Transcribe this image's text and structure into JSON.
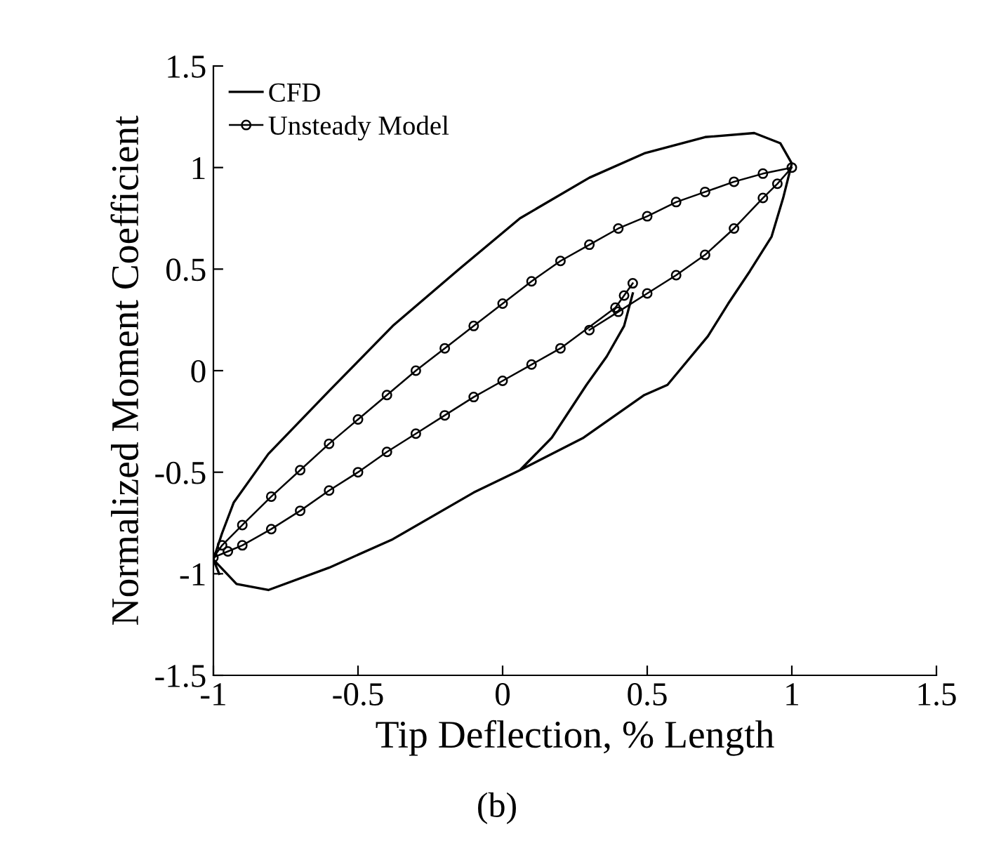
{
  "chart_data": {
    "type": "line",
    "xlabel": "Tip Deflection, % Length",
    "ylabel": "Normalized Moment Coefficient",
    "xlim": [
      -1,
      1.5
    ],
    "xticks": [
      -1,
      -0.5,
      0,
      0.5,
      1,
      1.5
    ],
    "ylim": [
      -1.5,
      1.5
    ],
    "yticks": [
      -1.5,
      -1,
      -0.5,
      0,
      0.5,
      1,
      1.5
    ],
    "grid": false,
    "legend": "top left",
    "annotations": [
      "(b)"
    ],
    "series": [
      {
        "name": "CFD",
        "color": "#000000",
        "marker": "none",
        "x": [
          0.45,
          0.42,
          0.36,
          0.29,
          0.17,
          0.06,
          -0.1,
          -0.38,
          -0.6,
          -0.81,
          -0.92,
          -1.0,
          -0.97,
          -0.93,
          -0.81,
          -0.6,
          -0.38,
          -0.15,
          0.06,
          0.3,
          0.49,
          0.7,
          0.87,
          0.96,
          1.0,
          0.97,
          0.93,
          0.855,
          0.78,
          0.71,
          0.57,
          0.49,
          0.28,
          0.06,
          -0.1,
          -0.38,
          -0.6,
          -0.81,
          -0.92,
          -1.0,
          -0.98
        ],
        "values": [
          0.38,
          0.22,
          0.07,
          -0.07,
          -0.33,
          -0.49,
          -0.6,
          -0.83,
          -0.97,
          -1.08,
          -1.05,
          -0.93,
          -0.8,
          -0.65,
          -0.41,
          -0.1,
          0.22,
          0.5,
          0.75,
          0.95,
          1.07,
          1.15,
          1.17,
          1.12,
          1.02,
          0.85,
          0.66,
          0.49,
          0.33,
          0.17,
          -0.07,
          -0.12,
          -0.33,
          -0.49,
          -0.6,
          -0.83,
          -0.97,
          -1.08,
          -1.05,
          -0.93,
          -1.0
        ]
      },
      {
        "name": "Unsteady Model",
        "color": "#000000",
        "marker": "circle",
        "x": [
          0.45,
          0.42,
          0.39,
          0.2,
          0.1,
          0.0,
          -0.1,
          -0.2,
          -0.3,
          -0.4,
          -0.5,
          -0.6,
          -0.7,
          -0.8,
          -0.9,
          -0.95,
          -1.0,
          -0.97,
          -0.9,
          -0.8,
          -0.7,
          -0.6,
          -0.5,
          -0.4,
          -0.3,
          -0.2,
          -0.1,
          0.0,
          0.1,
          0.2,
          0.3,
          0.4,
          0.5,
          0.6,
          0.7,
          0.8,
          0.9,
          1.0,
          0.95,
          0.9,
          0.8,
          0.7,
          0.6,
          0.5,
          0.4,
          0.3
        ],
        "values": [
          0.43,
          0.37,
          0.31,
          0.11,
          0.03,
          -0.05,
          -0.13,
          -0.22,
          -0.31,
          -0.4,
          -0.5,
          -0.59,
          -0.69,
          -0.78,
          -0.86,
          -0.89,
          -0.92,
          -0.86,
          -0.76,
          -0.62,
          -0.49,
          -0.36,
          -0.24,
          -0.12,
          0.0,
          0.11,
          0.22,
          0.33,
          0.44,
          0.54,
          0.62,
          0.7,
          0.76,
          0.83,
          0.88,
          0.93,
          0.97,
          1.0,
          0.92,
          0.85,
          0.7,
          0.57,
          0.47,
          0.38,
          0.29,
          0.2
        ]
      }
    ]
  }
}
